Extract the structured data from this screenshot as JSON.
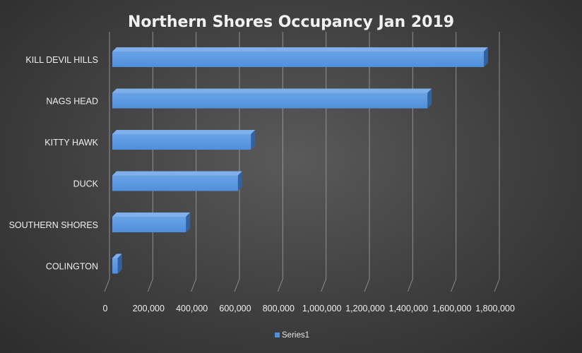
{
  "chart_data": {
    "type": "bar",
    "orientation": "horizontal",
    "style": "3d",
    "title": "Northern Shores Occupancy Jan 2019",
    "xlabel": "",
    "ylabel": "",
    "categories": [
      "KILL DEVIL HILLS",
      "NAGS HEAD",
      "KITTY HAWK",
      "DUCK",
      "SOUTHERN SHORES",
      "COLINGTON"
    ],
    "series": [
      {
        "name": "Series1",
        "values": [
          1715000,
          1455000,
          640000,
          580000,
          340000,
          25000
        ],
        "color": "#4f8fdc"
      }
    ],
    "xlim": [
      0,
      1800000
    ],
    "x_ticks": [
      "0",
      "200,000",
      "400,000",
      "600,000",
      "800,000",
      "1,000,000",
      "1,200,000",
      "1,400,000",
      "1,600,000",
      "1,800,000"
    ],
    "grid": true,
    "legend": "bottom"
  },
  "colors": {
    "bar_front": "#4f8fdc",
    "bar_top": "#7fb0ea",
    "bar_side": "#2f62a6",
    "grid": "#a8a8a8"
  }
}
